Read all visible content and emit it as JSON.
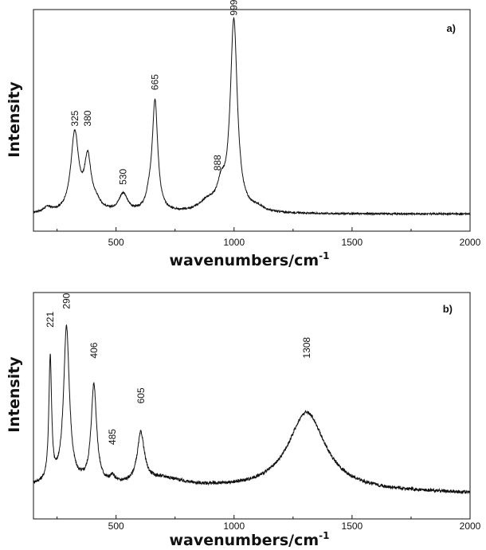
{
  "chart_data": [
    {
      "type": "line",
      "panel_label": "a)",
      "xlabel": "wavenumbers/cm",
      "xlabel_sup": "-1",
      "ylabel": "Intensity",
      "xlim": [
        150,
        2000
      ],
      "ylim": [
        0,
        1.1
      ],
      "xticks": [
        500,
        1000,
        1500,
        2000
      ],
      "xtick_labels": [
        "500",
        "1000",
        "1500",
        "2000"
      ],
      "grid": false,
      "line_color": "#111111",
      "baseline": 0.085,
      "peaks": [
        {
          "x": 210,
          "h": 0.025,
          "w": 20
        },
        {
          "x": 325,
          "h": 0.39,
          "w": 20
        },
        {
          "x": 380,
          "h": 0.25,
          "w": 17
        },
        {
          "x": 415,
          "h": 0.04,
          "w": 25
        },
        {
          "x": 530,
          "h": 0.09,
          "w": 22
        },
        {
          "x": 640,
          "h": 0.05,
          "w": 15
        },
        {
          "x": 665,
          "h": 0.55,
          "w": 14
        },
        {
          "x": 888,
          "h": 0.05,
          "w": 45
        },
        {
          "x": 945,
          "h": 0.1,
          "w": 20
        },
        {
          "x": 999,
          "h": 0.95,
          "w": 18
        },
        {
          "x": 1100,
          "h": 0.02,
          "w": 30
        }
      ],
      "noise": 0.004,
      "annotations": [
        {
          "text": "325",
          "x": 325,
          "y": 0.52
        },
        {
          "text": "380",
          "x": 380,
          "y": 0.52
        },
        {
          "text": "530",
          "x": 530,
          "y": 0.23
        },
        {
          "text": "665",
          "x": 665,
          "y": 0.7
        },
        {
          "text": "888",
          "x": 930,
          "y": 0.3
        },
        {
          "text": "999",
          "x": 999,
          "y": 1.07
        }
      ]
    },
    {
      "type": "line",
      "panel_label": "b)",
      "xlabel": "wavenumbers/cm",
      "xlabel_sup": "-1",
      "ylabel": "Intensity",
      "xlim": [
        150,
        2000
      ],
      "ylim": [
        0,
        1.1
      ],
      "xticks": [
        500,
        1000,
        1500,
        2000
      ],
      "xtick_labels": [
        "500",
        "1000",
        "1500",
        "2000"
      ],
      "grid": false,
      "line_color": "#111111",
      "baseline": 0.16,
      "baseline_slope": -2e-05,
      "peaks": [
        {
          "x": 221,
          "h": 0.6,
          "w": 7
        },
        {
          "x": 290,
          "h": 0.76,
          "w": 15
        },
        {
          "x": 406,
          "h": 0.48,
          "w": 14
        },
        {
          "x": 485,
          "h": 0.03,
          "w": 12
        },
        {
          "x": 605,
          "h": 0.24,
          "w": 18
        },
        {
          "x": 700,
          "h": 0.04,
          "w": 100
        },
        {
          "x": 1308,
          "h": 0.38,
          "w": 95
        }
      ],
      "noise": 0.008,
      "annotations": [
        {
          "text": "221",
          "x": 221,
          "y": 0.93
        },
        {
          "text": "290",
          "x": 290,
          "y": 1.02
        },
        {
          "text": "406",
          "x": 406,
          "y": 0.78
        },
        {
          "text": "485",
          "x": 485,
          "y": 0.36
        },
        {
          "text": "605",
          "x": 605,
          "y": 0.56
        },
        {
          "text": "1308",
          "x": 1308,
          "y": 0.78
        }
      ]
    }
  ]
}
